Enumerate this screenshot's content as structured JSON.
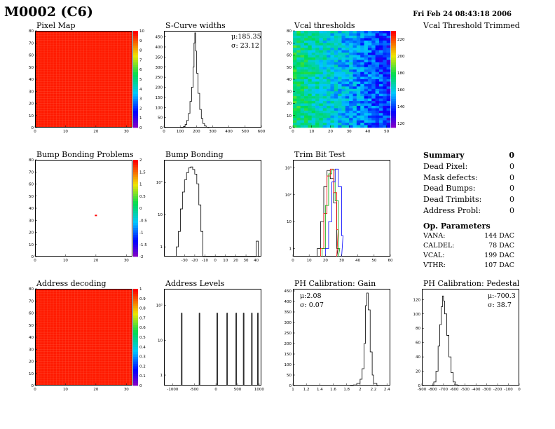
{
  "header": {
    "title": "M0002 (C6)",
    "date": "Fri Feb 24 08:43:18 2006"
  },
  "panels": {
    "p1": {
      "title": "Pixel Map"
    },
    "p2": {
      "title": "S-Curve widths",
      "stat1": "μ:185.35",
      "stat2": "σ: 23.12"
    },
    "p3": {
      "title": "Vcal thresholds"
    },
    "p4": {
      "title": "Vcal Threshold Trimmed"
    },
    "p5": {
      "title": "Bump Bonding Problems"
    },
    "p6": {
      "title": "Bump Bonding"
    },
    "p7": {
      "title": "Trim Bit Test"
    },
    "p9": {
      "title": "Address decoding"
    },
    "p10": {
      "title": "Address Levels"
    },
    "p11": {
      "title": "PH Calibration: Gain",
      "stat1": "μ:2.08",
      "stat2": "σ: 0.07"
    },
    "p12": {
      "title": "PH Calibration: Pedestal",
      "stat1": "μ:-700.3",
      "stat2": "σ: 38.7"
    }
  },
  "summary": {
    "title": "Summary",
    "total": "0",
    "rows": [
      {
        "label": "Dead Pixel:",
        "value": "0"
      },
      {
        "label": "Mask defects:",
        "value": "0"
      },
      {
        "label": "Dead Bumps:",
        "value": "0"
      },
      {
        "label": "Dead Trimbits:",
        "value": "0"
      },
      {
        "label": "Address Probl:",
        "value": "0"
      }
    ]
  },
  "op_params": {
    "title": "Op. Parameters",
    "rows": [
      {
        "label": "VANA:",
        "value": "144 DAC"
      },
      {
        "label": "CALDEL:",
        "value": "78 DAC"
      },
      {
        "label": "VCAL:",
        "value": "199 DAC"
      },
      {
        "label": "VTHR:",
        "value": "107 DAC"
      }
    ]
  },
  "chart_data": [
    {
      "id": "p1",
      "type": "heatmap",
      "title": "Pixel Map",
      "fill": "uniform",
      "fill_value": 10,
      "xlim": [
        0,
        32
      ],
      "ylim": [
        0,
        80
      ],
      "xticks": [
        "0",
        "10",
        "20",
        "30"
      ],
      "yticks": [
        "0",
        "10",
        "20",
        "30",
        "40",
        "50",
        "60",
        "70",
        "80"
      ],
      "zlim": [
        0,
        10
      ],
      "zticks": [
        "0",
        "1",
        "2",
        "3",
        "4",
        "5",
        "6",
        "7",
        "8",
        "9",
        "10"
      ]
    },
    {
      "id": "p2",
      "type": "histogram",
      "title": "S-Curve widths",
      "xlim": [
        0,
        600
      ],
      "ylim": [
        0,
        480
      ],
      "xticks": [
        "0",
        "100",
        "200",
        "300",
        "400",
        "500",
        "600"
      ],
      "yticks": [
        "0",
        "50",
        "100",
        "150",
        "200",
        "250",
        "300",
        "350",
        "400",
        "450"
      ],
      "bins": [
        [
          100,
          0
        ],
        [
          120,
          5
        ],
        [
          130,
          15
        ],
        [
          140,
          35
        ],
        [
          150,
          70
        ],
        [
          160,
          130
        ],
        [
          170,
          200
        ],
        [
          180,
          300
        ],
        [
          185,
          420
        ],
        [
          190,
          470
        ],
        [
          195,
          380
        ],
        [
          200,
          270
        ],
        [
          210,
          170
        ],
        [
          220,
          90
        ],
        [
          230,
          45
        ],
        [
          240,
          20
        ],
        [
          250,
          8
        ],
        [
          260,
          2
        ],
        [
          270,
          0
        ]
      ]
    },
    {
      "id": "p3",
      "type": "heatmap",
      "title": "Vcal thresholds",
      "fill": "gradient",
      "xlim": [
        0,
        52
      ],
      "ylim": [
        0,
        80
      ],
      "xticks": [
        "0",
        "10",
        "20",
        "30",
        "40",
        "50"
      ],
      "yticks": [
        "0",
        "10",
        "20",
        "30",
        "40",
        "50",
        "60",
        "70",
        "80"
      ],
      "zlim": [
        115,
        230
      ],
      "zticks": [
        "120",
        "140",
        "160",
        "180",
        "200",
        "220"
      ]
    },
    {
      "id": "p5",
      "type": "heatmap",
      "title": "Bump Bonding Problems",
      "fill": "points",
      "xlim": [
        0,
        32
      ],
      "ylim": [
        0,
        80
      ],
      "xticks": [
        "0",
        "10",
        "20",
        "30"
      ],
      "yticks": [
        "0",
        "10",
        "20",
        "30",
        "40",
        "50",
        "60",
        "70",
        "80"
      ],
      "zlim": [
        -2,
        2
      ],
      "zticks": [
        "-2",
        "-1.5",
        "-1",
        "-0.5",
        "0",
        "0.5",
        "1",
        "1.5",
        "2"
      ],
      "points": [
        {
          "x": 20,
          "y": 34
        }
      ]
    },
    {
      "id": "p6",
      "type": "histogram",
      "title": "Bump Bonding",
      "log": true,
      "xlim": [
        -50,
        45
      ],
      "ylim": [
        0.5,
        500
      ],
      "xticks": [
        "-30",
        "-20",
        "-10",
        "0",
        "10",
        "20",
        "30",
        "40"
      ],
      "yticks": [
        "1",
        "10",
        "10²"
      ],
      "bins": [
        [
          -38,
          1
        ],
        [
          -36,
          3
        ],
        [
          -34,
          15
        ],
        [
          -32,
          50
        ],
        [
          -30,
          120
        ],
        [
          -28,
          200
        ],
        [
          -26,
          280
        ],
        [
          -24,
          300
        ],
        [
          -22,
          250
        ],
        [
          -20,
          180
        ],
        [
          -18,
          90
        ],
        [
          -16,
          20
        ],
        [
          -14,
          3
        ],
        [
          -12,
          0
        ],
        [
          40,
          1.5
        ],
        [
          42,
          0
        ]
      ]
    },
    {
      "id": "p7",
      "type": "histogram",
      "title": "Trim Bit Test",
      "log": true,
      "xlim": [
        0,
        60
      ],
      "ylim": [
        0.5,
        2000
      ],
      "xticks": [
        "0",
        "10",
        "20",
        "30",
        "40",
        "50",
        "60"
      ],
      "yticks": [
        "1",
        "10",
        "10²",
        "10³"
      ],
      "series": [
        {
          "color": "#000000",
          "bins": [
            [
              15,
              1
            ],
            [
              17,
              10
            ],
            [
              19,
              200
            ],
            [
              21,
              800
            ],
            [
              23,
              400
            ],
            [
              25,
              50
            ],
            [
              27,
              1
            ]
          ]
        },
        {
          "color": "#ff0000",
          "bins": [
            [
              17,
              1
            ],
            [
              19,
              20
            ],
            [
              21,
              500
            ],
            [
              23,
              900
            ],
            [
              25,
              120
            ],
            [
              27,
              5
            ]
          ]
        },
        {
          "color": "#00aa00",
          "bins": [
            [
              18,
              1
            ],
            [
              20,
              40
            ],
            [
              22,
              600
            ],
            [
              24,
              850
            ],
            [
              26,
              60
            ],
            [
              28,
              1
            ]
          ]
        },
        {
          "color": "#0000ff",
          "bins": [
            [
              20,
              1
            ],
            [
              22,
              10
            ],
            [
              24,
              300
            ],
            [
              26,
              900
            ],
            [
              28,
              200
            ],
            [
              30,
              3
            ]
          ]
        }
      ]
    },
    {
      "id": "p9",
      "type": "heatmap",
      "title": "Address decoding",
      "fill": "uniform",
      "fill_value": 1,
      "xlim": [
        0,
        32
      ],
      "ylim": [
        0,
        80
      ],
      "xticks": [
        "0",
        "10",
        "20",
        "30"
      ],
      "yticks": [
        "0",
        "10",
        "20",
        "30",
        "40",
        "50",
        "60",
        "70",
        "80"
      ],
      "zlim": [
        0,
        1
      ],
      "zticks": [
        "0",
        "0.1",
        "0.2",
        "0.3",
        "0.4",
        "0.5",
        "0.6",
        "0.7",
        "0.8",
        "0.9",
        "1"
      ]
    },
    {
      "id": "p10",
      "type": "histogram",
      "title": "Address Levels",
      "log": true,
      "xlim": [
        -1200,
        1050
      ],
      "ylim": [
        0.5,
        300
      ],
      "xticks": [
        "-1000",
        "-500",
        "0",
        "500",
        "1000"
      ],
      "yticks": [
        "1",
        "10",
        "10²"
      ],
      "spikes": [
        -790,
        -380,
        30,
        260,
        470,
        640,
        830,
        970
      ]
    },
    {
      "id": "p11",
      "type": "histogram",
      "title": "PH Calibration: Gain",
      "xlim": [
        1.0,
        2.45
      ],
      "ylim": [
        0,
        460
      ],
      "xticks": [
        "1",
        "1.2",
        "1.4",
        "1.6",
        "1.8",
        "2",
        "2.2",
        "2.4"
      ],
      "yticks": [
        "0",
        "50",
        "100",
        "150",
        "200",
        "250",
        "300",
        "350",
        "400",
        "450"
      ],
      "bins": [
        [
          1.85,
          0
        ],
        [
          1.9,
          3
        ],
        [
          1.95,
          10
        ],
        [
          2.0,
          30
        ],
        [
          2.03,
          80
        ],
        [
          2.06,
          200
        ],
        [
          2.08,
          380
        ],
        [
          2.1,
          440
        ],
        [
          2.12,
          360
        ],
        [
          2.15,
          160
        ],
        [
          2.18,
          50
        ],
        [
          2.2,
          10
        ],
        [
          2.25,
          0
        ]
      ]
    },
    {
      "id": "p12",
      "type": "histogram",
      "title": "PH Calibration: Pedestal",
      "xlim": [
        -900,
        0
      ],
      "ylim": [
        0,
        135
      ],
      "xticks": [
        "-900",
        "-800",
        "-700",
        "-600",
        "-500",
        "-400",
        "-300",
        "-200",
        "-100",
        "0"
      ],
      "yticks": [
        "0",
        "20",
        "40",
        "60",
        "80",
        "100",
        "120"
      ],
      "bins": [
        [
          -810,
          0
        ],
        [
          -790,
          5
        ],
        [
          -770,
          20
        ],
        [
          -750,
          55
        ],
        [
          -735,
          85
        ],
        [
          -720,
          110
        ],
        [
          -710,
          125
        ],
        [
          -700,
          118
        ],
        [
          -690,
          100
        ],
        [
          -670,
          70
        ],
        [
          -650,
          40
        ],
        [
          -630,
          18
        ],
        [
          -610,
          5
        ],
        [
          -590,
          1
        ],
        [
          -570,
          0
        ]
      ]
    }
  ]
}
